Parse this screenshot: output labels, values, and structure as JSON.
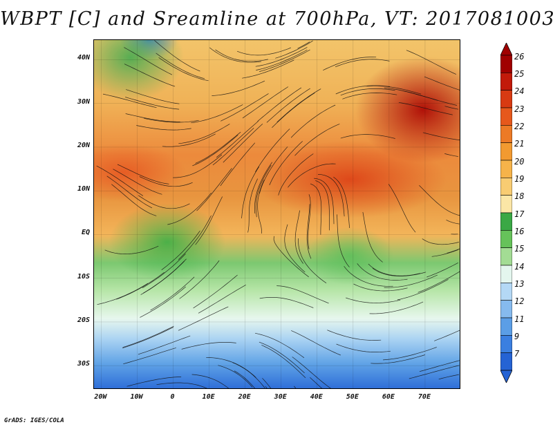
{
  "title": "WBPT [C] and Sreamline at 700hPa, VT: 2017081003",
  "footer": "GrADS: IGES/COLA",
  "map": {
    "lat_labels": [
      "40N",
      "30N",
      "20N",
      "10N",
      "EQ",
      "10S",
      "20S",
      "30S"
    ],
    "lon_labels": [
      "20W",
      "10W",
      "0",
      "10E",
      "20E",
      "30E",
      "40E",
      "50E",
      "60E",
      "70E"
    ],
    "lat_values": [
      40,
      30,
      20,
      10,
      0,
      -10,
      -20,
      -30
    ],
    "lon_values": [
      -20,
      -10,
      0,
      10,
      20,
      30,
      40,
      50,
      60,
      70
    ],
    "lon_range": [
      -22,
      80
    ],
    "lat_range": [
      -35.5,
      44.5
    ]
  },
  "colorbar": {
    "labels": [
      "26",
      "25",
      "24",
      "23",
      "22",
      "21",
      "20",
      "19",
      "18",
      "17",
      "16",
      "15",
      "14",
      "13",
      "12",
      "11",
      "9",
      "7"
    ],
    "colors": [
      "#a00000",
      "#c21a0a",
      "#d83a12",
      "#e6581c",
      "#ec7a26",
      "#f29a30",
      "#f6b34a",
      "#f8cc72",
      "#fbe6a6",
      "#3aa845",
      "#66c25a",
      "#a3dc94",
      "#e4f6ee",
      "#b4d8f5",
      "#86baee",
      "#5b9ee6",
      "#3b7fe0",
      "#2563d4"
    ]
  }
}
